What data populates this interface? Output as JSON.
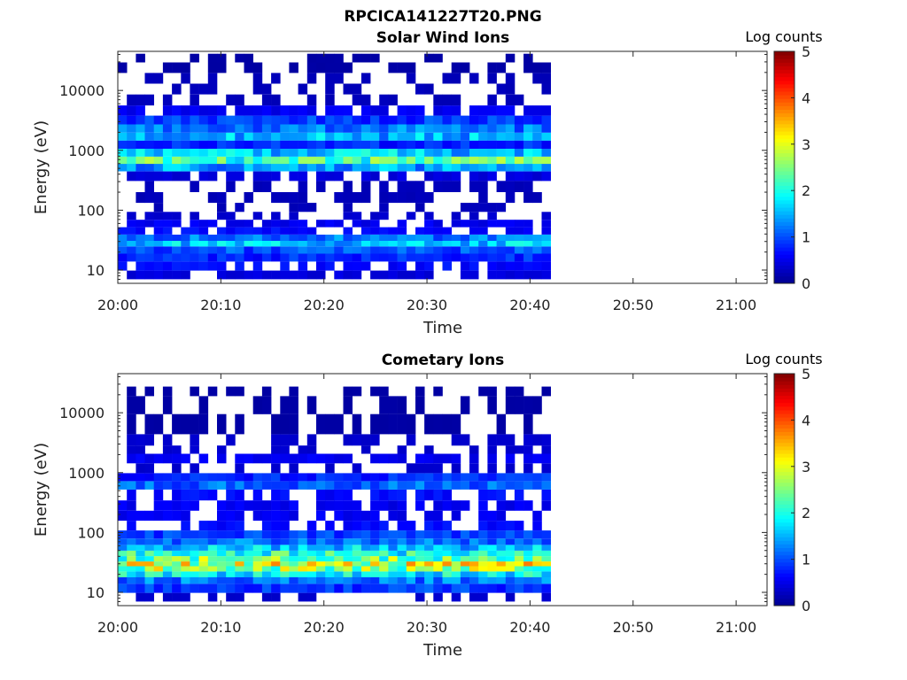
{
  "figure_title": "RPCICA141227T20.PNG",
  "colormap": [
    "#00008f",
    "#0000ff",
    "#007fff",
    "#00ffff",
    "#7fff7f",
    "#ffff00",
    "#ff7f00",
    "#ff0000",
    "#7f0000"
  ],
  "chart_data": [
    {
      "type": "heatmap",
      "title": "Solar Wind Ions",
      "xlabel": "Time",
      "ylabel": "Energy (eV)",
      "x_ticks": [
        "20:00",
        "20:10",
        "20:20",
        "20:30",
        "20:40",
        "20:50",
        "21:00"
      ],
      "y_ticks": [
        "10",
        "100",
        "1000",
        "10000"
      ],
      "y_scale": "log",
      "ylim": [
        6,
        45000
      ],
      "xlim_minutes": [
        0,
        63
      ],
      "data_extent_minutes": [
        0,
        42
      ],
      "colorbar": {
        "label": "Log counts",
        "ticks": [
          "0",
          "1",
          "2",
          "3",
          "4",
          "5"
        ],
        "range": [
          0,
          5
        ]
      },
      "bands": [
        {
          "energy": 8,
          "level": 0.4
        },
        {
          "energy": 12,
          "level": 0.6
        },
        {
          "energy": 16,
          "level": 0.8
        },
        {
          "energy": 22,
          "level": 1.0
        },
        {
          "energy": 28,
          "level": 1.6
        },
        {
          "energy": 34,
          "level": 1.2
        },
        {
          "energy": 45,
          "level": 0.6
        },
        {
          "energy": 60,
          "level": 0.5
        },
        {
          "energy": 80,
          "level": 0.3
        },
        {
          "energy": 110,
          "level": 0.2
        },
        {
          "energy": 160,
          "level": 0.2
        },
        {
          "energy": 250,
          "level": 0.2
        },
        {
          "energy": 380,
          "level": 0.4
        },
        {
          "energy": 520,
          "level": 1.4
        },
        {
          "energy": 680,
          "level": 2.2
        },
        {
          "energy": 900,
          "level": 1.6
        },
        {
          "energy": 1250,
          "level": 0.8
        },
        {
          "energy": 1700,
          "level": 1.5
        },
        {
          "energy": 2300,
          "level": 1.2
        },
        {
          "energy": 3200,
          "level": 0.9
        },
        {
          "energy": 4500,
          "level": 0.5
        },
        {
          "energy": 7000,
          "level": 0.2
        },
        {
          "energy": 10500,
          "level": 0.2
        },
        {
          "energy": 16000,
          "level": 0.2
        },
        {
          "energy": 24000,
          "level": 0.1
        },
        {
          "energy": 36000,
          "level": 0.1
        }
      ]
    },
    {
      "type": "heatmap",
      "title": "Cometary Ions",
      "xlabel": "Time",
      "ylabel": "Energy (eV)",
      "x_ticks": [
        "20:00",
        "20:10",
        "20:20",
        "20:30",
        "20:40",
        "20:50",
        "21:00"
      ],
      "y_ticks": [
        "10",
        "100",
        "1000",
        "10000"
      ],
      "y_scale": "log",
      "ylim": [
        6,
        45000
      ],
      "xlim_minutes": [
        0,
        63
      ],
      "data_extent_minutes": [
        0,
        42
      ],
      "colorbar": {
        "label": "Log counts",
        "ticks": [
          "0",
          "1",
          "2",
          "3",
          "4",
          "5"
        ],
        "range": [
          0,
          5
        ]
      },
      "bands": [
        {
          "energy": 8,
          "level": 0.3
        },
        {
          "energy": 12,
          "level": 0.9
        },
        {
          "energy": 16,
          "level": 1.2
        },
        {
          "energy": 20,
          "level": 1.8
        },
        {
          "energy": 25,
          "level": 2.6
        },
        {
          "energy": 30,
          "level": 2.9
        },
        {
          "energy": 36,
          "level": 2.4
        },
        {
          "energy": 45,
          "level": 2.0
        },
        {
          "energy": 55,
          "level": 1.6
        },
        {
          "energy": 70,
          "level": 1.2
        },
        {
          "energy": 90,
          "level": 0.9
        },
        {
          "energy": 130,
          "level": 0.6
        },
        {
          "energy": 190,
          "level": 0.5
        },
        {
          "energy": 280,
          "level": 0.5
        },
        {
          "energy": 420,
          "level": 0.6
        },
        {
          "energy": 650,
          "level": 1.1
        },
        {
          "energy": 800,
          "level": 0.8
        },
        {
          "energy": 1200,
          "level": 0.3
        },
        {
          "energy": 1700,
          "level": 0.5
        },
        {
          "energy": 2500,
          "level": 0.3
        },
        {
          "energy": 3200,
          "level": 0.3
        },
        {
          "energy": 6000,
          "level": 0.1
        },
        {
          "energy": 15000,
          "level": 0.1
        },
        {
          "energy": 24000,
          "level": 0.1
        }
      ]
    }
  ]
}
